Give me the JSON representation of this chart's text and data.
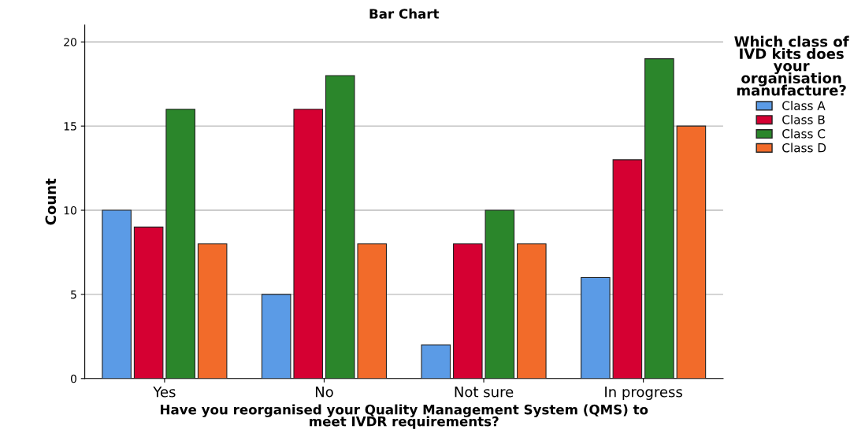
{
  "chart_data": {
    "type": "bar",
    "title": "Bar Chart",
    "xlabel": "Have you reorganised your Quality Management System (QMS) to\nmeet IVDR requirements?",
    "ylabel": "Count",
    "legend_title": "Which class of\nIVD kits does\nyour\norganisation\nmanufacture?",
    "categories": [
      "Yes",
      "No",
      "Not sure",
      "In progress"
    ],
    "series": [
      {
        "name": "Class A",
        "color": "#5b9be6",
        "values": [
          10,
          5,
          2,
          6
        ]
      },
      {
        "name": "Class B",
        "color": "#d50032",
        "values": [
          9,
          16,
          8,
          13
        ]
      },
      {
        "name": "Class C",
        "color": "#2b862b",
        "values": [
          16,
          18,
          10,
          19
        ]
      },
      {
        "name": "Class D",
        "color": "#f26b2a",
        "values": [
          8,
          8,
          8,
          15
        ]
      }
    ],
    "ylim": [
      0,
      21
    ],
    "yticks": [
      0,
      5,
      10,
      15,
      20
    ],
    "grid": "y",
    "legend": "right"
  }
}
